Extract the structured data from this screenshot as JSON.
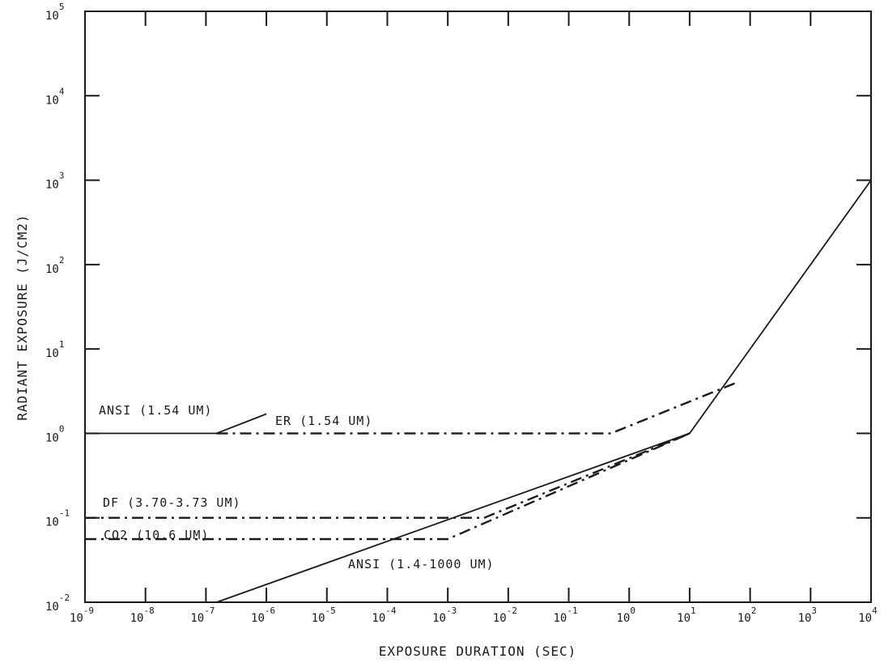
{
  "chart_data": {
    "type": "line",
    "title": "",
    "xlabel": "EXPOSURE DURATION (SEC)",
    "ylabel": "RADIANT EXPOSURE (J/CM2)",
    "x_scale": "log",
    "y_scale": "log",
    "xlim": [
      1e-09,
      10000
    ],
    "ylim": [
      0.01,
      100000
    ],
    "grid": false,
    "x_ticks": [
      {
        "base": "10",
        "exp": "-9"
      },
      {
        "base": "10",
        "exp": "-8"
      },
      {
        "base": "10",
        "exp": "-7"
      },
      {
        "base": "10",
        "exp": "-6"
      },
      {
        "base": "10",
        "exp": "-5"
      },
      {
        "base": "10",
        "exp": "-4"
      },
      {
        "base": "10",
        "exp": "-3"
      },
      {
        "base": "10",
        "exp": "-2"
      },
      {
        "base": "10",
        "exp": "-1"
      },
      {
        "base": "10",
        "exp": "0"
      },
      {
        "base": "10",
        "exp": "1"
      },
      {
        "base": "10",
        "exp": "2"
      },
      {
        "base": "10",
        "exp": "3"
      },
      {
        "base": "10",
        "exp": "4"
      }
    ],
    "y_ticks": [
      {
        "base": "10",
        "exp": "-2"
      },
      {
        "base": "10",
        "exp": "-1"
      },
      {
        "base": "10",
        "exp": "0"
      },
      {
        "base": "10",
        "exp": "1"
      },
      {
        "base": "10",
        "exp": "2"
      },
      {
        "base": "10",
        "exp": "3"
      },
      {
        "base": "10",
        "exp": "4"
      },
      {
        "base": "10",
        "exp": "5"
      }
    ],
    "series": [
      {
        "name": "ANSI (1.54 UM)",
        "style": "solid",
        "x": [
          1e-09,
          1.5e-07,
          1e-06
        ],
        "y": [
          1.0,
          1.0,
          1.7
        ]
      },
      {
        "name": "ER (1.54 UM)",
        "style": "dashdot",
        "x": [
          1.5e-07,
          0.5,
          60
        ],
        "y": [
          1.0,
          1.0,
          4.0
        ]
      },
      {
        "name": "DF (3.70-3.73 UM)",
        "style": "dashdot",
        "x": [
          1e-09,
          0.004,
          10
        ],
        "y": [
          0.1,
          0.1,
          1.0
        ]
      },
      {
        "name": "CO2 (10.6 UM)",
        "style": "dashdot",
        "x": [
          1e-09,
          0.001,
          10
        ],
        "y": [
          0.056,
          0.056,
          1.0
        ]
      },
      {
        "name": "ANSI (1.4-1000 UM)",
        "style": "solid",
        "x": [
          1.5e-07,
          10,
          10000
        ],
        "y": [
          0.01,
          1.0,
          1000
        ]
      }
    ],
    "labels": [
      {
        "series": "ANSI (1.54 UM)",
        "text": "ANSI (1.54 UM)"
      },
      {
        "series": "ER (1.54 UM)",
        "text": "ER (1.54 UM)"
      },
      {
        "series": "DF (3.70-3.73 UM)",
        "text": "DF (3.70-3.73 UM)"
      },
      {
        "series": "CO2 (10.6 UM)",
        "text": "CO2 (10.6 UM)"
      },
      {
        "series": "ANSI (1.4-1000 UM)",
        "text": "ANSI (1.4-1000 UM)"
      }
    ]
  }
}
